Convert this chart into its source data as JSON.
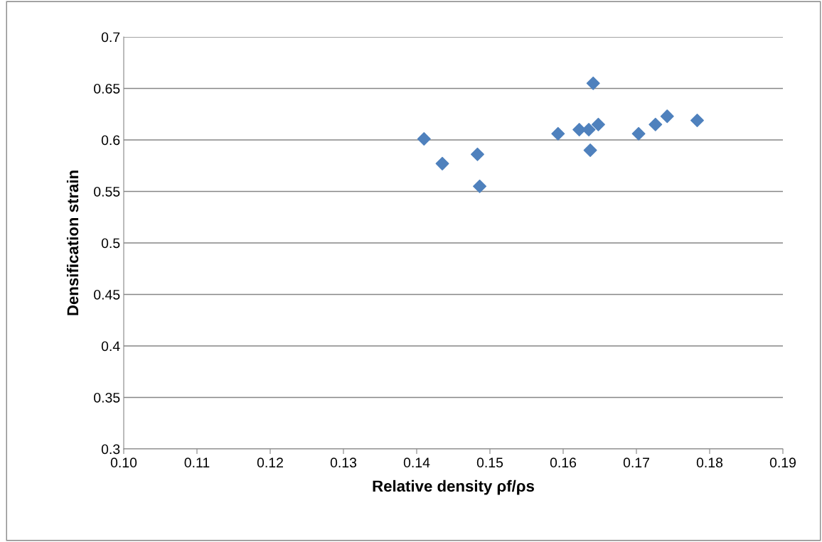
{
  "chart_data": {
    "type": "scatter",
    "xlabel": "Relative density ρf/ρs",
    "ylabel": "Densification strain",
    "x": [
      0.141,
      0.1435,
      0.1483,
      0.1486,
      0.1593,
      0.1622,
      0.1635,
      0.1648,
      0.1637,
      0.1641,
      0.1703,
      0.1726,
      0.1742,
      0.1783
    ],
    "series": [
      {
        "color": "#4f81bd",
        "values": [
          0.601,
          0.577,
          0.586,
          0.555,
          0.606,
          0.61,
          0.61,
          0.615,
          0.59,
          0.655,
          0.606,
          0.615,
          0.623,
          0.619
        ]
      }
    ],
    "xlim": [
      0.1,
      0.19
    ],
    "xticks": [
      {
        "value": 0.1,
        "label": "0.10"
      },
      {
        "value": 0.11,
        "label": "0.11"
      },
      {
        "value": 0.12,
        "label": "0.12"
      },
      {
        "value": 0.13,
        "label": "0.13"
      },
      {
        "value": 0.14,
        "label": "0.14"
      },
      {
        "value": 0.15,
        "label": "0.15"
      },
      {
        "value": 0.16,
        "label": "0.16"
      },
      {
        "value": 0.17,
        "label": "0.17"
      },
      {
        "value": 0.18,
        "label": "0.18"
      },
      {
        "value": 0.19,
        "label": "0.19"
      }
    ],
    "ylim": [
      0.3,
      0.7
    ],
    "yticks": [
      0.3,
      0.35,
      0.4,
      0.45,
      0.5,
      0.55,
      0.6,
      0.65,
      0.7
    ],
    "grid": "y",
    "marker": "diamond",
    "legend": false
  }
}
